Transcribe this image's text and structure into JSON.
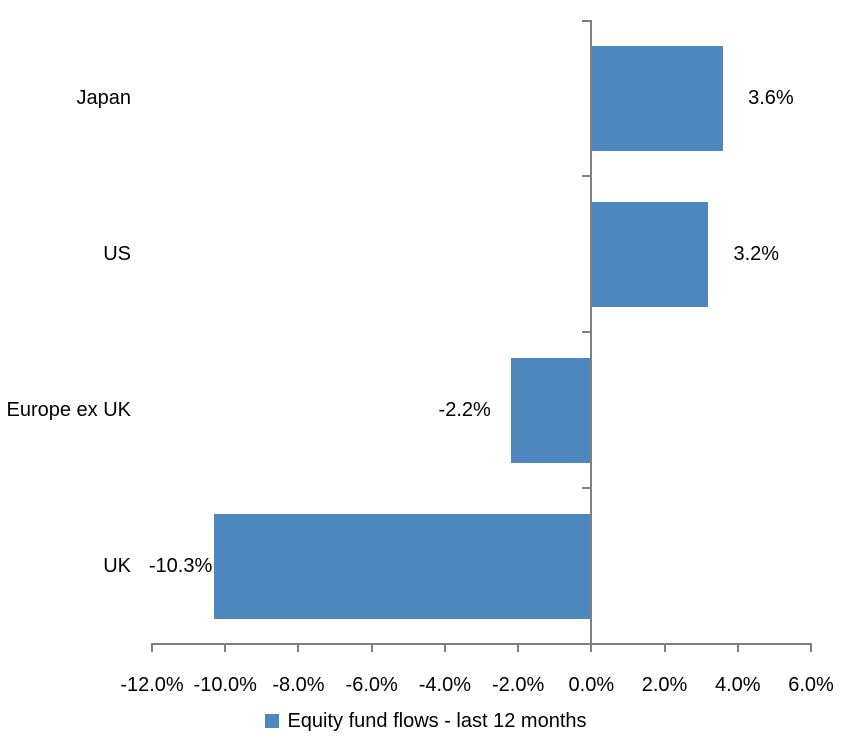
{
  "chart_data": {
    "type": "bar",
    "orientation": "horizontal",
    "categories": [
      "Japan",
      "US",
      "Europe ex UK",
      "UK"
    ],
    "values": [
      3.6,
      3.2,
      -2.2,
      -10.3
    ],
    "data_labels": [
      "3.6%",
      "3.2%",
      "-2.2%",
      "-10.3%"
    ],
    "xlabel": "",
    "ylabel": "",
    "xlim": [
      -12,
      6
    ],
    "x_tick_step": 2,
    "x_tick_labels": [
      "-12.0%",
      "-10.0%",
      "-8.0%",
      "-6.0%",
      "-4.0%",
      "-2.0%",
      "0.0%",
      "2.0%",
      "4.0%",
      "6.0%"
    ],
    "grid": false,
    "legend": {
      "position": "bottom",
      "label": "Equity fund flows - last 12 months",
      "swatch_color": "#4E86BE"
    },
    "colors": {
      "bar": "#4E86BE",
      "axis": "#7F7F7F",
      "text": "#000000",
      "background": "#FFFFFF"
    }
  }
}
